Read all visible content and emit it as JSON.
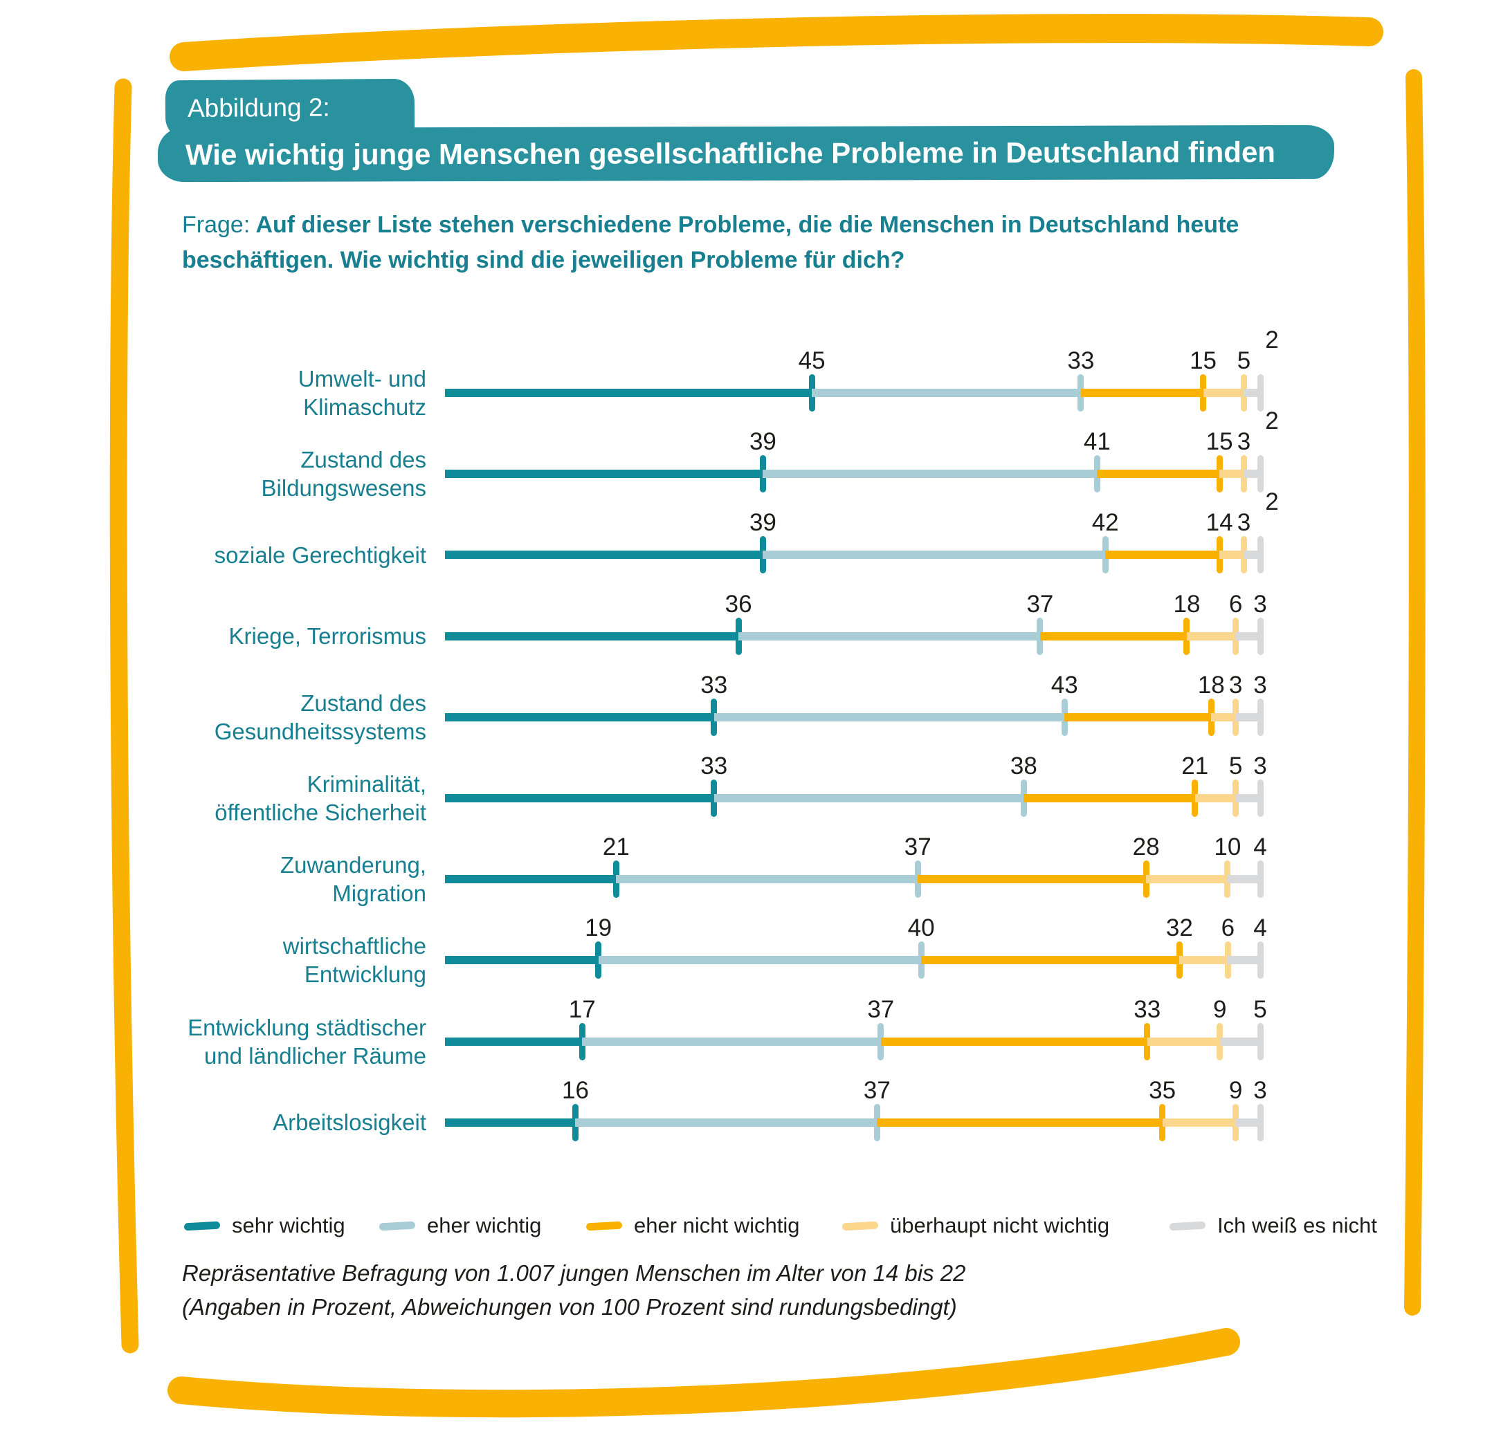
{
  "header": {
    "figure_label": "Abbildung 2:",
    "title": "Wie wichtig junge Menschen gesellschaftliche Probleme in Deutschland finden"
  },
  "question": {
    "prefix": "Frage:",
    "line1": "Auf dieser Liste stehen verschiedene Probleme, die die Menschen in Deutschland heute",
    "line2": "beschäftigen. Wie wichtig sind die jeweiligen Probleme für dich?"
  },
  "chart_data": {
    "type": "bar",
    "orientation": "horizontal",
    "stacked": true,
    "unit": "percent",
    "xlim": [
      0,
      100
    ],
    "grid": false,
    "legend_position": "bottom",
    "categories": [
      "Umwelt- und Klimaschutz",
      "Zustand des Bildungswesens",
      "soziale Gerechtigkeit",
      "Kriege, Terrorismus",
      "Zustand des Gesundheitssystems",
      "Kriminalität, öffentliche Sicherheit",
      "Zuwanderung, Migration",
      "wirtschaftliche Entwicklung",
      "Entwicklung städtischer und ländlicher Räume",
      "Arbeitslosigkeit"
    ],
    "category_label_lines": [
      [
        "Umwelt- und",
        "Klimaschutz"
      ],
      [
        "Zustand des",
        "Bildungswesens"
      ],
      [
        "soziale Gerechtigkeit"
      ],
      [
        "Kriege, Terrorismus"
      ],
      [
        "Zustand des",
        "Gesundheitssystems"
      ],
      [
        "Kriminalität,",
        "öffentliche Sicherheit"
      ],
      [
        "Zuwanderung,",
        "Migration"
      ],
      [
        "wirtschaftliche",
        "Entwicklung"
      ],
      [
        "Entwicklung städtischer",
        "und ländlicher Räume"
      ],
      [
        "Arbeitslosigkeit"
      ]
    ],
    "series": [
      {
        "name": "sehr wichtig",
        "color": "#0F8B99",
        "values": [
          45,
          39,
          39,
          36,
          33,
          33,
          21,
          19,
          17,
          16
        ]
      },
      {
        "name": "eher wichtig",
        "color": "#A9CDD6",
        "values": [
          33,
          41,
          42,
          37,
          43,
          38,
          37,
          40,
          37,
          37
        ]
      },
      {
        "name": "eher nicht wichtig",
        "color": "#F9B104",
        "values": [
          15,
          15,
          14,
          18,
          18,
          21,
          28,
          32,
          33,
          35
        ]
      },
      {
        "name": "überhaupt nicht wichtig",
        "color": "#FBD78E",
        "values": [
          5,
          3,
          3,
          6,
          3,
          5,
          10,
          6,
          9,
          9
        ]
      },
      {
        "name": "Ich weiß es nicht",
        "color": "#D7D9DA",
        "values": [
          2,
          2,
          2,
          3,
          3,
          3,
          4,
          4,
          5,
          3
        ]
      }
    ]
  },
  "legend": {
    "items": [
      {
        "label": "sehr wichtig",
        "color": "#0F8B99"
      },
      {
        "label": "eher wichtig",
        "color": "#A9CDD6"
      },
      {
        "label": "eher nicht wichtig",
        "color": "#F9B104"
      },
      {
        "label": "überhaupt nicht wichtig",
        "color": "#FBD78E"
      },
      {
        "label": "Ich weiß es nicht",
        "color": "#D7D9DA"
      }
    ]
  },
  "footnote": {
    "line1": "Repräsentative Befragung von 1.007 jungen Menschen im Alter von 14 bis 22",
    "line2": "(Angaben in Prozent, Abweichungen von 100 Prozent sind rundungsbedingt)"
  },
  "colors": {
    "frame_yellow": "#F9B104",
    "band_teal": "#2A929E",
    "text_teal": "#177F90",
    "number_text": "#1D1D1B"
  }
}
